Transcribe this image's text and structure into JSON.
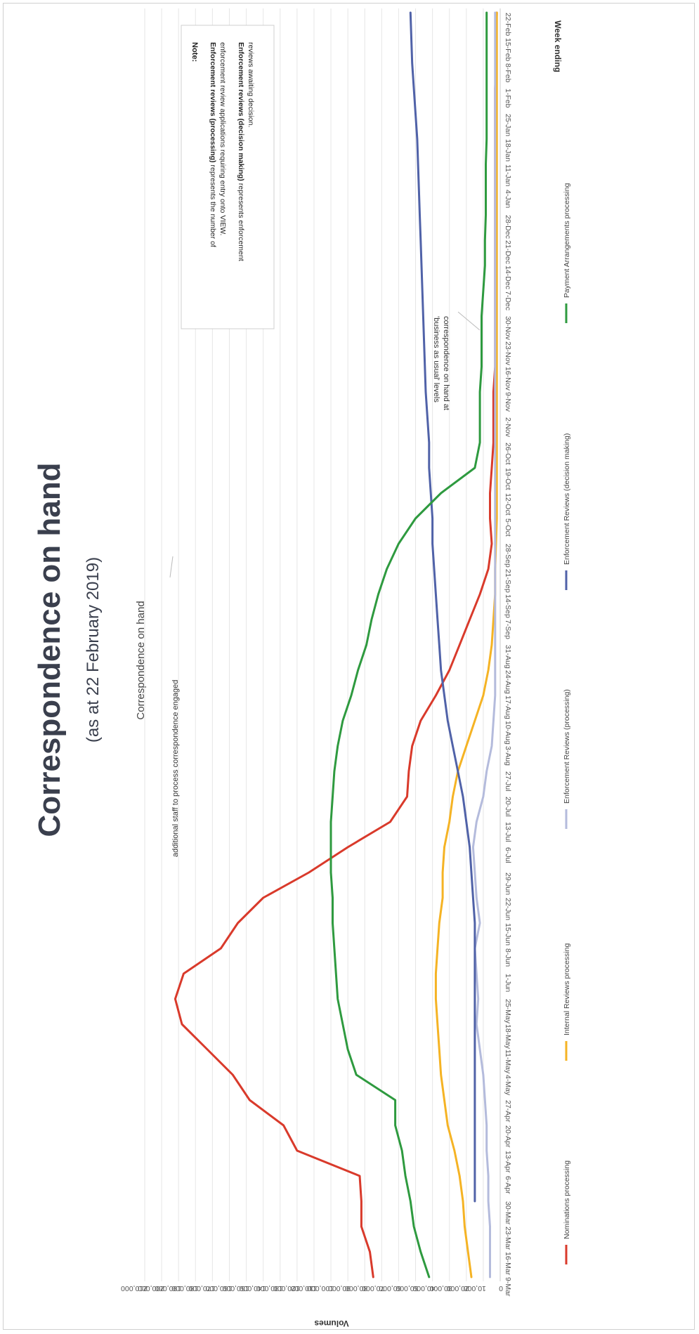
{
  "page": {
    "title": "Correspondence on hand",
    "subtitle": "(as at 22 February 2019)"
  },
  "chart_data": {
    "type": "line",
    "title": "Correspondence on hand",
    "xlabel": "Week ending",
    "ylabel": "Volumes",
    "ylim": [
      0,
      210000
    ],
    "ytick_labels": [
      "0",
      "10,000",
      "20,000",
      "30,000",
      "40,000",
      "50,000",
      "60,000",
      "70,000",
      "80,000",
      "90,000",
      "100,000",
      "110,000",
      "120,000",
      "130,000",
      "140,000",
      "150,000",
      "160,000",
      "170,000",
      "180,000",
      "190,000",
      "200,000",
      "210,000"
    ],
    "grid": true,
    "legend_position": "bottom",
    "categories": [
      "9-Mar",
      "16-Mar",
      "23-Mar",
      "30-Mar",
      "6-Apr",
      "13-Apr",
      "20-Apr",
      "27-Apr",
      "4-May",
      "11-May",
      "18-May",
      "25-May",
      "1-Jun",
      "8-Jun",
      "15-Jun",
      "22-Jun",
      "29-Jun",
      "6-Jul",
      "13-Jul",
      "20-Jul",
      "27-Jul",
      "3-Aug",
      "10-Aug",
      "17-Aug",
      "24-Aug",
      "31-Aug",
      "7-Sep",
      "14-Sep",
      "21-Sep",
      "28-Sep",
      "5-Oct",
      "12-Oct",
      "19-Oct",
      "26-Oct",
      "2-Nov",
      "9-Nov",
      "16-Nov",
      "23-Nov",
      "30-Nov",
      "7-Dec",
      "14-Dec",
      "21-Dec",
      "28-Dec",
      "4-Jan",
      "11-Jan",
      "18-Jan",
      "25-Jan",
      "1-Feb",
      "8-Feb",
      "15-Feb",
      "22-Feb"
    ],
    "series": [
      {
        "name": "Nominations processing",
        "color": "#d93a2b",
        "values": [
          75000,
          77000,
          82000,
          82000,
          83000,
          120000,
          128000,
          148000,
          158000,
          173000,
          188000,
          192000,
          187000,
          165000,
          155000,
          140000,
          113000,
          90000,
          65000,
          55000,
          54000,
          52000,
          47000,
          38000,
          30000,
          24000,
          18000,
          12000,
          7000,
          5000,
          6000,
          6000,
          5000,
          4000,
          4000,
          4000,
          3000,
          3000,
          3000,
          3000,
          3000,
          3000,
          3000,
          3000,
          3000,
          3000,
          3000,
          3000,
          2500,
          2500,
          2000
        ]
      },
      {
        "name": "Internal Reviews processing",
        "color": "#f5b324",
        "values": [
          17000,
          19000,
          21000,
          22000,
          24000,
          27000,
          31000,
          33000,
          35000,
          36000,
          37000,
          38000,
          38000,
          37000,
          36000,
          34000,
          34000,
          33000,
          30000,
          28000,
          25000,
          20000,
          15000,
          10000,
          7000,
          5000,
          4000,
          3000,
          3000,
          2500,
          2000,
          2000,
          2000,
          2000,
          2000,
          2000,
          2000,
          2000,
          2000,
          2000,
          2000,
          2000,
          2000,
          2000,
          2000,
          2000,
          2000,
          2000,
          2000,
          2000,
          2000
        ]
      },
      {
        "name": "Enforcement Reviews (processing)",
        "color": "#b4bbdc",
        "values": [
          6000,
          6000,
          6000,
          7000,
          7000,
          8000,
          8000,
          9000,
          10000,
          12000,
          14000,
          13000,
          14000,
          15000,
          12000,
          14000,
          15000,
          16000,
          14000,
          10000,
          8000,
          5000,
          4000,
          3000,
          3000,
          3000,
          3000,
          3000,
          3000,
          3000,
          3000,
          3000,
          3000,
          3000,
          3000,
          3000,
          3000,
          3000,
          3000,
          3000,
          3000,
          3000,
          3000,
          3000,
          3000,
          3000,
          3000,
          3000,
          3000,
          3000,
          3000
        ]
      },
      {
        "name": "Enforcement Reviews (decision making)",
        "color": "#5062a8",
        "values": [
          null,
          null,
          null,
          15000,
          15000,
          15000,
          15000,
          15000,
          15000,
          15000,
          15000,
          15000,
          15000,
          15000,
          15000,
          16000,
          17000,
          18000,
          20000,
          22000,
          25000,
          28000,
          31000,
          33000,
          35000,
          36000,
          37000,
          38000,
          39000,
          40000,
          40000,
          41000,
          42000,
          42000,
          43000,
          44000,
          44500,
          45000,
          45500,
          46000,
          46500,
          47000,
          47500,
          48000,
          48500,
          49000,
          50000,
          51000,
          52000,
          52500,
          53000
        ]
      },
      {
        "name": "Payment Arrangements processing",
        "color": "#2e9a3f",
        "values": [
          42000,
          47000,
          51000,
          53000,
          56000,
          58000,
          62000,
          62000,
          85000,
          90000,
          93000,
          96000,
          97000,
          98000,
          99000,
          99000,
          100000,
          100000,
          100000,
          99000,
          98000,
          96000,
          93000,
          88000,
          84000,
          79000,
          76000,
          72000,
          67000,
          60000,
          50000,
          35000,
          15000,
          12000,
          12000,
          12000,
          11000,
          11000,
          11000,
          10000,
          9000,
          9000,
          8500,
          8500,
          8500,
          8000,
          8000,
          8000,
          8000,
          8000,
          8000
        ]
      }
    ],
    "annotations": [
      {
        "text": "additional staff to process correspondence engaged",
        "at_category": "25-May",
        "at_value": 192000
      },
      {
        "text": "correspondence on hand at",
        "text2": "'business as usual' levels",
        "at_category": "2-Nov",
        "at_value": 12000
      }
    ],
    "note": {
      "heading": "Note:",
      "para1_bold": "Enforcement reviews (processing)",
      "para1_rest": " represents the number of",
      "para1_line2": "enforcement review applications requiring entry onto VIEW.",
      "para2_bold": "Enforcement reviews (decision making)",
      "para2_rest": " represents enforcement",
      "para2_line2": "reviews awaiting decision."
    }
  }
}
